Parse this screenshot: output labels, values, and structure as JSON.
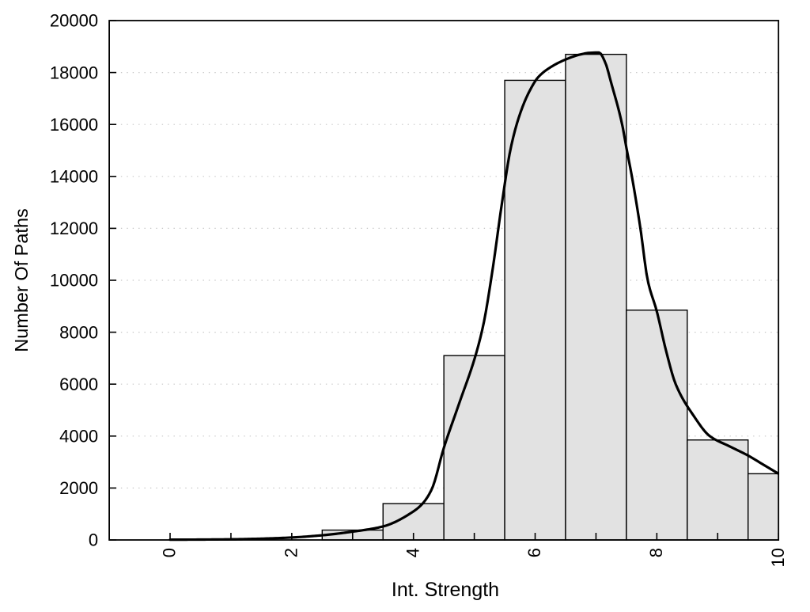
{
  "chart_data": {
    "type": "bar",
    "subtype": "histogram-with-density-curve",
    "title": "",
    "xlabel": "Int. Strength",
    "ylabel": "Number Of Paths",
    "xlim": [
      -1,
      10
    ],
    "ylim": [
      0,
      20000
    ],
    "x_tick_positions": [
      0,
      1,
      2,
      3,
      4,
      5,
      6,
      7,
      8,
      9,
      10
    ],
    "x_tick_labeled": [
      0,
      2,
      4,
      6,
      8,
      10
    ],
    "y_tick_min": 0,
    "y_tick_max": 20000,
    "y_tick_step": 2000,
    "grid": "horizontal-dotted",
    "grid_color": "#c6c6c6",
    "bars": {
      "fill": "#e2e2e2",
      "stroke": "#000000",
      "bin_edges": [
        2.5,
        3.5,
        4.5,
        5.5,
        6.5,
        7.5,
        8.5,
        9.5,
        10
      ],
      "values": [
        380,
        1400,
        7100,
        17700,
        18700,
        8850,
        3850,
        2550
      ]
    },
    "curve": {
      "name": "density-curve",
      "color": "#000000",
      "points": [
        [
          0,
          10
        ],
        [
          0.5,
          15
        ],
        [
          1,
          25
        ],
        [
          1.5,
          50
        ],
        [
          2,
          95
        ],
        [
          2.5,
          180
        ],
        [
          3,
          320
        ],
        [
          3.5,
          520
        ],
        [
          4,
          1100
        ],
        [
          4.15,
          1400
        ],
        [
          4.3,
          1950
        ],
        [
          4.5,
          3550
        ],
        [
          4.75,
          5250
        ],
        [
          5.02,
          7100
        ],
        [
          5.15,
          8300
        ],
        [
          5.3,
          10400
        ],
        [
          5.45,
          12900
        ],
        [
          5.6,
          15100
        ],
        [
          5.75,
          16400
        ],
        [
          5.9,
          17250
        ],
        [
          6.05,
          17820
        ],
        [
          6.25,
          18200
        ],
        [
          6.5,
          18500
        ],
        [
          6.75,
          18700
        ],
        [
          6.9,
          18760
        ],
        [
          7.05,
          18770
        ],
        [
          7.15,
          18400
        ],
        [
          7.25,
          17600
        ],
        [
          7.43,
          16000
        ],
        [
          7.5,
          15100
        ],
        [
          7.59,
          14000
        ],
        [
          7.73,
          12000
        ],
        [
          7.85,
          10000
        ],
        [
          8,
          8800
        ],
        [
          8.15,
          7300
        ],
        [
          8.31,
          6000
        ],
        [
          8.6,
          4800
        ],
        [
          8.87,
          4000
        ],
        [
          9.2,
          3600
        ],
        [
          9.5,
          3250
        ],
        [
          9.75,
          2900
        ],
        [
          10,
          2550
        ]
      ]
    }
  }
}
